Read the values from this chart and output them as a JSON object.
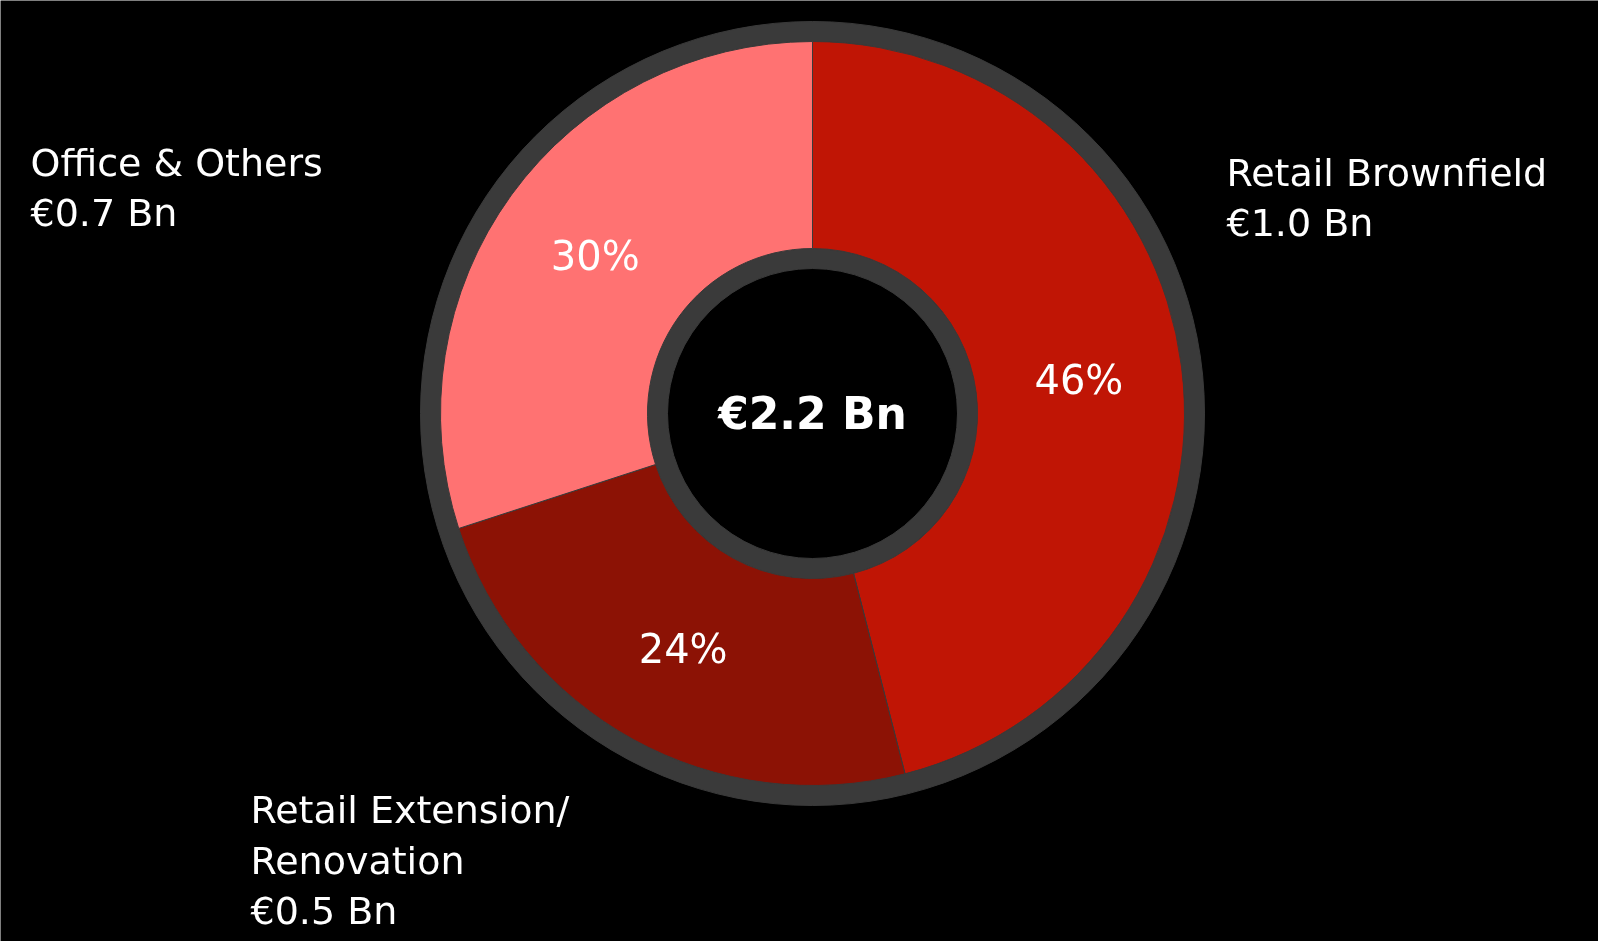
{
  "chart_data": {
    "type": "donut",
    "categories": [
      "Retail Brownfield\n€1.0 Bn",
      "Retail Extension/\nRenovation\n€0.5 Bn",
      "Office & Others\n€0.7 Bn"
    ],
    "values": [
      46,
      24,
      30
    ],
    "colors": [
      "#c01505",
      "#8c1205",
      "#ff7272"
    ],
    "value_labels": [
      "46%",
      "24%",
      "30%"
    ],
    "annotations": [
      "€2.2 Bn"
    ]
  }
}
